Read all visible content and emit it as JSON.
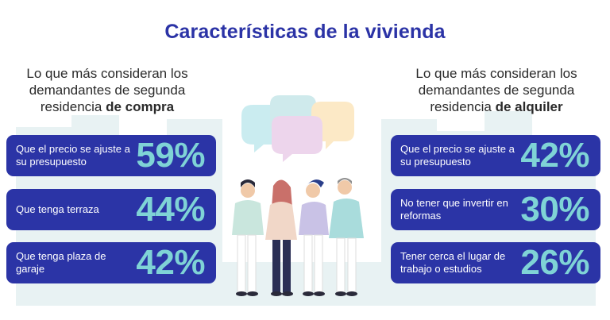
{
  "title": "Características de la vivienda",
  "colors": {
    "title": "#2b33a6",
    "card_bg": "#2b34a6",
    "card_text": "#ffffff",
    "percent": "#7fd3d6",
    "skyline": "#e6f1f2"
  },
  "left": {
    "heading_line1": "Lo que más consideran los",
    "heading_line2": "demandantes de segunda",
    "heading_line3_prefix": "residencia ",
    "heading_line3_bold": "de compra",
    "items": [
      {
        "label": "Que el precio se ajuste a su presupuesto",
        "value": "59%"
      },
      {
        "label": "Que tenga terraza",
        "value": "44%"
      },
      {
        "label": "Que tenga plaza de garaje",
        "value": "42%"
      }
    ]
  },
  "right": {
    "heading_line1": "Lo que más consideran los",
    "heading_line2": "demandantes de segunda",
    "heading_line3_prefix": "residencia ",
    "heading_line3_bold": "de alquiler",
    "items": [
      {
        "label": "Que el precio se ajuste a su presupuesto",
        "value": "42%"
      },
      {
        "label": "No tener que invertir en reformas",
        "value": "30%"
      },
      {
        "label": "Tener cerca el lugar de trabajo o estudios",
        "value": "26%"
      }
    ]
  },
  "illustration": {
    "icons": [
      "speech-bubble-icon",
      "people-group-illustration"
    ]
  }
}
